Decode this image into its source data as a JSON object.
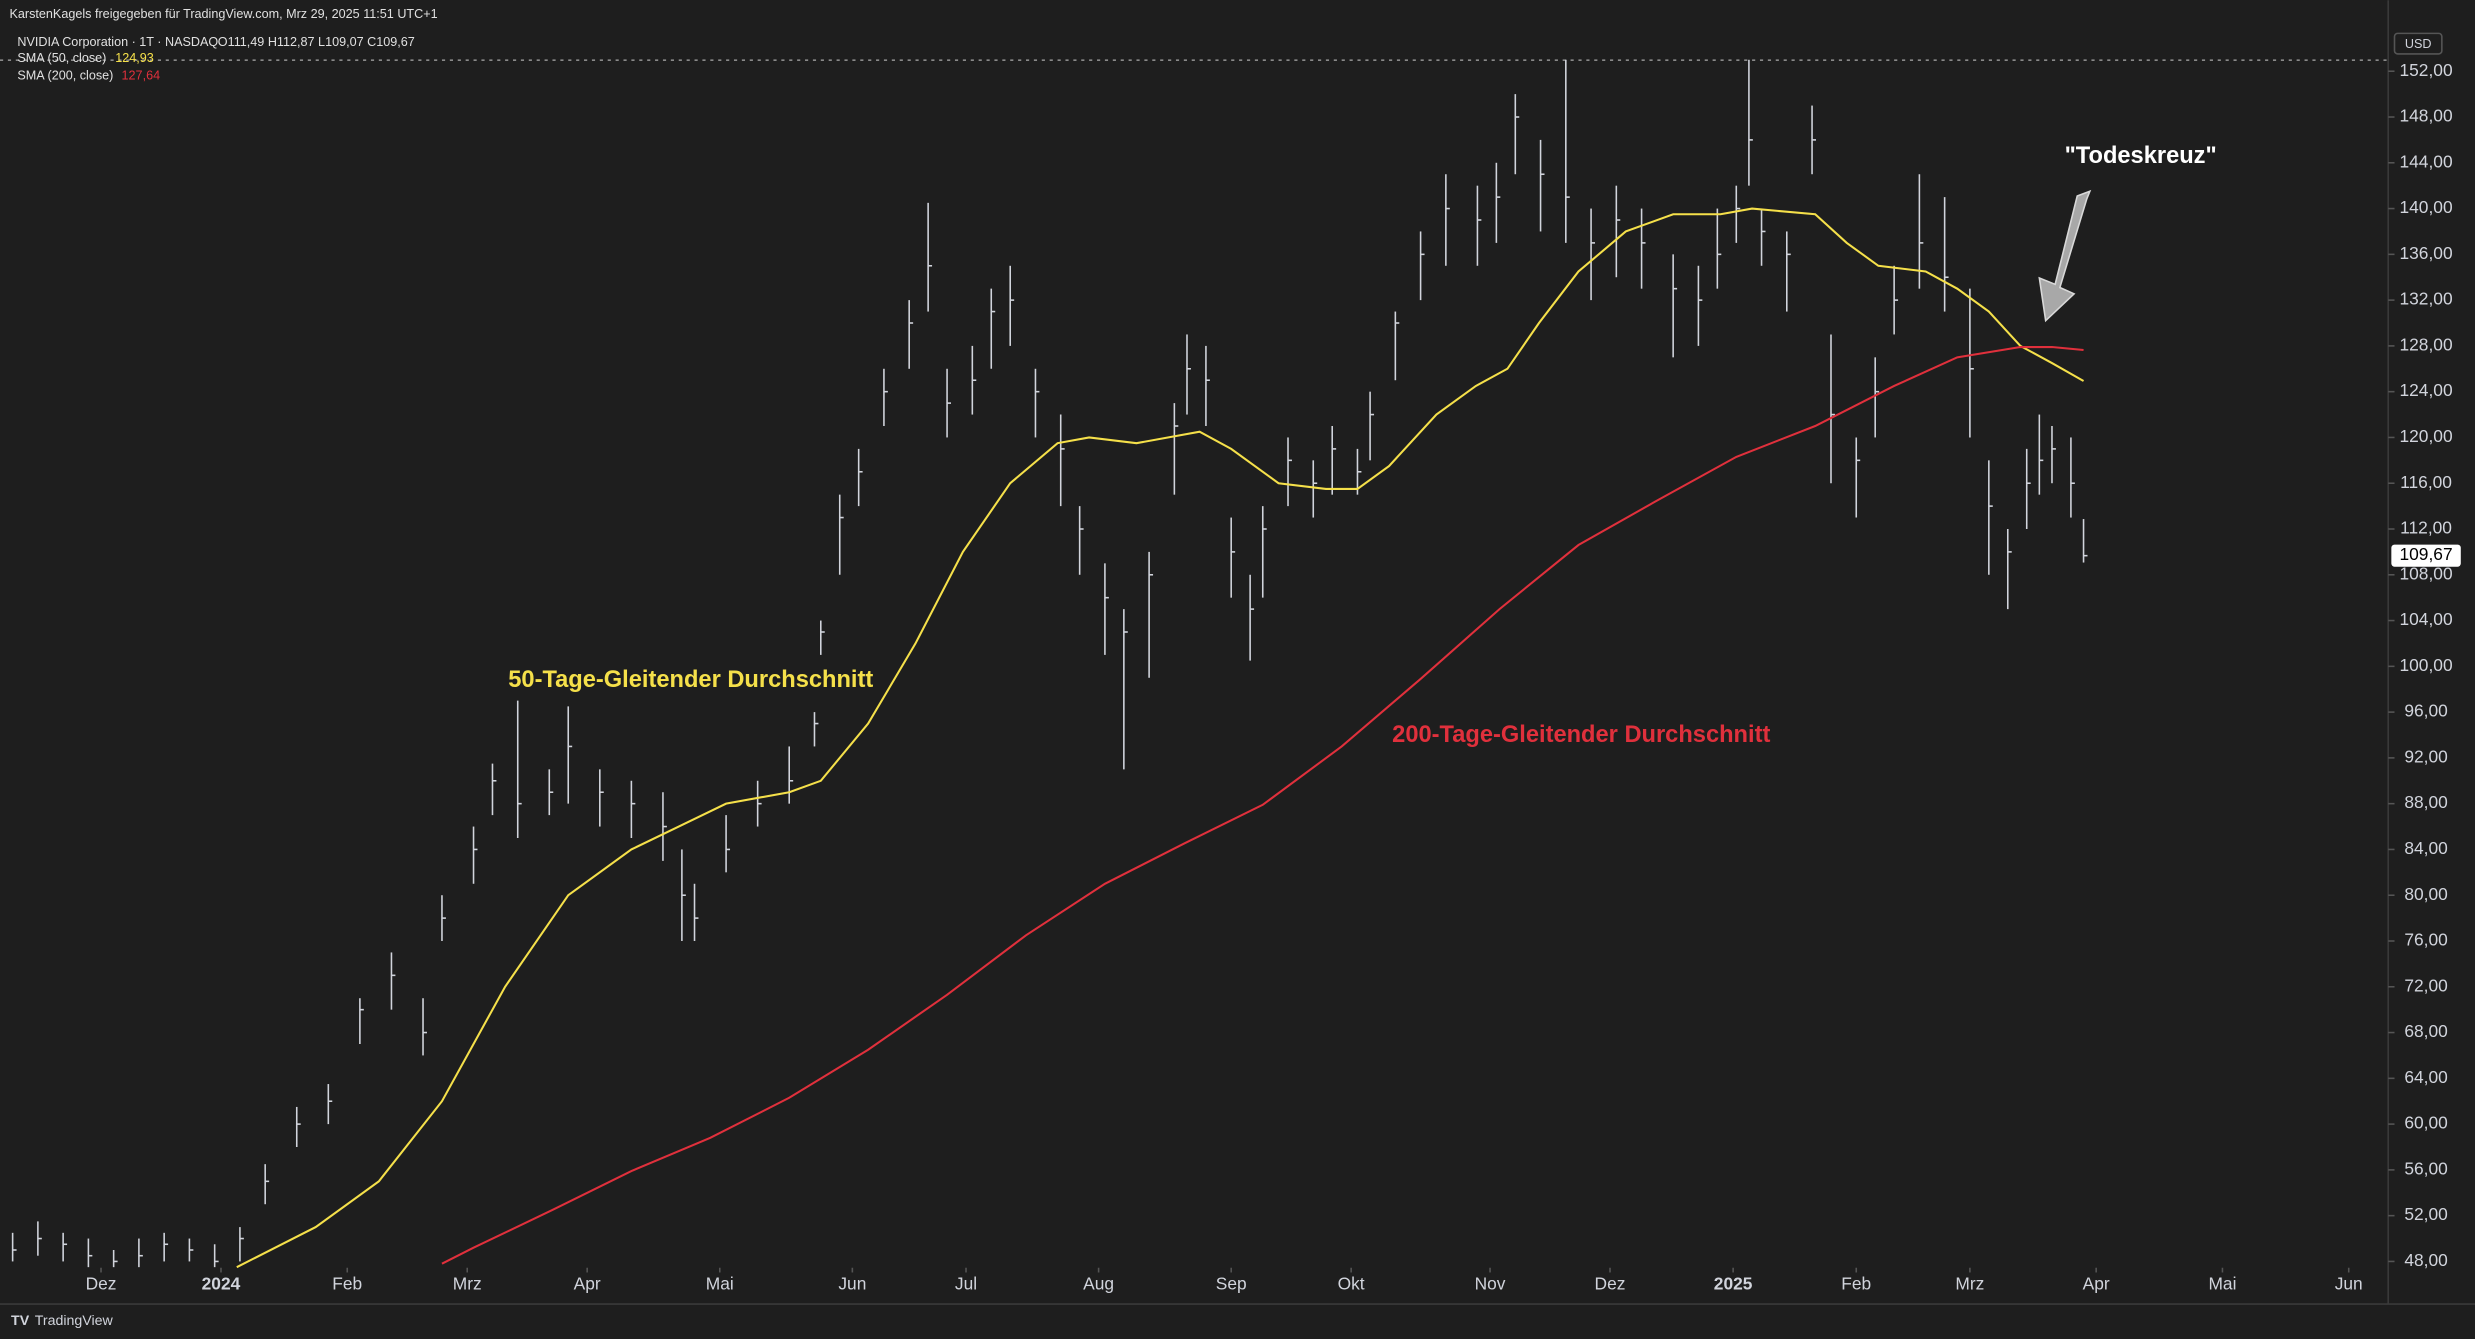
{
  "header": {
    "shared_by": "KarstenKagels freigegeben für TradingView.com, Mrz 29, 2025 11:51 UTC+1",
    "brand": "TradingView"
  },
  "chart_data": {
    "type": "ohlc",
    "title": "NVIDIA Corporation · 1T · NASDAQ",
    "subtitle": "O111,49  H112,87  L109,07  C109,67",
    "currency": "USD",
    "last_label": "109,67",
    "color": "#d1d4dc",
    "x": [
      2,
      6,
      10,
      14,
      18,
      22,
      26,
      30,
      34,
      38,
      42,
      47,
      52,
      57,
      62,
      67,
      70,
      75,
      78,
      82,
      87,
      90,
      95,
      100,
      105,
      108,
      110,
      115,
      120,
      125,
      129,
      130,
      133,
      136,
      140,
      144,
      147,
      150,
      154,
      157,
      160,
      164,
      168,
      171,
      175,
      178,
      182,
      186,
      188,
      191,
      195,
      198,
      200,
      204,
      208,
      211,
      215,
      217,
      221,
      225,
      229,
      234,
      237,
      240,
      244,
      248,
      252,
      256,
      260,
      265,
      269,
      272,
      275,
      277,
      279,
      283,
      287,
      290,
      294,
      297,
      300,
      304,
      308,
      312,
      315,
      318,
      321,
      323,
      325,
      328,
      330
    ],
    "high": [
      50.5,
      51.5,
      50.5,
      50,
      49,
      50,
      50.5,
      50,
      49.5,
      51,
      56.5,
      61.5,
      63.5,
      71,
      75,
      71,
      80,
      86,
      91.5,
      97,
      91,
      96.5,
      91,
      90,
      89,
      84,
      81,
      87,
      90,
      93,
      96,
      104,
      115,
      119,
      126,
      132,
      140.5,
      126,
      128,
      133,
      135,
      126,
      122,
      114,
      109,
      105,
      110,
      123,
      129,
      128,
      113,
      108,
      114,
      120,
      118,
      121,
      119,
      124,
      131,
      138,
      143,
      142,
      144,
      150,
      146,
      153,
      140,
      142,
      140,
      136,
      135,
      140,
      142,
      153,
      140,
      138,
      149,
      129,
      120,
      127,
      135,
      143,
      141,
      133,
      118,
      112,
      119,
      122,
      121,
      120,
      112.87
    ],
    "low": [
      48,
      48.5,
      48,
      47.5,
      47.5,
      47.5,
      48,
      48,
      47.5,
      48,
      53,
      58,
      60,
      67,
      70,
      66,
      76,
      81,
      87,
      85,
      87,
      88,
      86,
      85,
      83,
      76,
      76,
      82,
      86,
      88,
      93,
      101,
      108,
      114,
      121,
      126,
      131,
      120,
      122,
      126,
      128,
      120,
      114,
      108,
      101,
      91,
      99,
      115,
      122,
      121,
      106,
      100.5,
      106,
      114,
      113,
      115,
      115,
      118,
      125,
      132,
      135,
      135,
      137,
      143,
      138,
      137,
      132,
      134,
      133,
      127,
      128,
      133,
      137,
      142,
      135,
      131,
      143,
      116,
      113,
      120,
      129,
      133,
      131,
      120,
      108,
      105,
      112,
      115,
      116,
      113,
      109.07
    ],
    "close": [
      49,
      50,
      49.5,
      48.5,
      48,
      48.5,
      49.5,
      49,
      48,
      50,
      55,
      60,
      62,
      70,
      73,
      68,
      78,
      84,
      90,
      88,
      89,
      93,
      89,
      88,
      86,
      80,
      78,
      84,
      88,
      90,
      95,
      103,
      113,
      117,
      124,
      130,
      135,
      123,
      125,
      131,
      132,
      124,
      119,
      112,
      106,
      103,
      108,
      121,
      126,
      125,
      110,
      105,
      112,
      118,
      116,
      119,
      117,
      122,
      130,
      136,
      140,
      139,
      141,
      148,
      143,
      141,
      137,
      139,
      137,
      133,
      132,
      136,
      140,
      146,
      138,
      136,
      146,
      122,
      118,
      124,
      132,
      137,
      134,
      126,
      114,
      110,
      116,
      118,
      119,
      116,
      109.67
    ],
    "series": [
      {
        "name": "SMA (50, close)",
        "last_label": "124,93",
        "color": "#f5e04a",
        "x": [
          37.5,
          50,
          60,
          70,
          80,
          90,
          100,
          107.5,
          115,
          125,
          130,
          137.5,
          145,
          152.5,
          160,
          167.5,
          172.5,
          180,
          190,
          195,
          202.5,
          210,
          215,
          220,
          227.5,
          233.75,
          238.75,
          243.75,
          250,
          257.5,
          265,
          272.5,
          277.5,
          287.5,
          292.5,
          297.5,
          305,
          310,
          315,
          320,
          325,
          330
        ],
        "values": [
          47.5,
          51,
          55,
          62,
          72,
          80,
          84,
          86,
          88,
          89,
          90,
          95,
          102,
          110,
          116,
          119.5,
          120,
          119.5,
          120.5,
          119,
          116,
          115.5,
          115.5,
          117.5,
          122,
          124.5,
          126,
          130,
          134.5,
          138,
          139.5,
          139.5,
          140,
          139.5,
          137,
          135,
          134.5,
          133,
          131,
          128,
          126.5,
          124.93
        ]
      },
      {
        "name": "SMA (200, close)",
        "last_label": "127,64",
        "color": "#e0303c",
        "x": [
          70,
          75,
          87.5,
          100,
          112.5,
          125,
          137.5,
          150,
          162.5,
          175,
          187.5,
          200,
          212.5,
          225,
          237.5,
          250,
          262.5,
          275,
          287.5,
          300,
          310,
          320,
          325,
          330
        ],
        "values": [
          47.8,
          49.2,
          52.5,
          55.9,
          58.8,
          62.3,
          66.5,
          71.3,
          76.5,
          81,
          84.5,
          87.9,
          93,
          98.9,
          105,
          110.6,
          114.5,
          118.3,
          121,
          124.5,
          127,
          127.9,
          127.9,
          127.64
        ]
      }
    ],
    "annotations": [
      {
        "text": "50-Tage-Gleitender Durchschnitt",
        "color": "#f5e04a"
      },
      {
        "text": "200-Tage-Gleitender Durchschnitt",
        "color": "#e0303c"
      },
      {
        "text": "\"Todeskreuz\"",
        "color": "#ffffff"
      }
    ],
    "xlim": [
      0,
      378.25
    ],
    "xticks": [
      {
        "value": 16,
        "label": "Dez"
      },
      {
        "value": 35,
        "label": "2024"
      },
      {
        "value": 55,
        "label": "Feb"
      },
      {
        "value": 74,
        "label": "Mrz"
      },
      {
        "value": 93,
        "label": "Apr"
      },
      {
        "value": 114,
        "label": "Mai"
      },
      {
        "value": 135,
        "label": "Jun"
      },
      {
        "value": 153,
        "label": "Jul"
      },
      {
        "value": 174,
        "label": "Aug"
      },
      {
        "value": 195,
        "label": "Sep"
      },
      {
        "value": 214,
        "label": "Okt"
      },
      {
        "value": 236,
        "label": "Nov"
      },
      {
        "value": 255,
        "label": "Dez"
      },
      {
        "value": 274.5,
        "label": "2025"
      },
      {
        "value": 294,
        "label": "Feb"
      },
      {
        "value": 312,
        "label": "Mrz"
      },
      {
        "value": 332,
        "label": "Apr"
      },
      {
        "value": 352,
        "label": "Mai"
      },
      {
        "value": 372,
        "label": "Jun"
      }
    ],
    "ylim": [
      47.45,
      153.1
    ],
    "yticks": [
      {
        "value": 48,
        "label": "48,00"
      },
      {
        "value": 52,
        "label": "52,00"
      },
      {
        "value": 56,
        "label": "56,00"
      },
      {
        "value": 60,
        "label": "60,00"
      },
      {
        "value": 64,
        "label": "64,00"
      },
      {
        "value": 68,
        "label": "68,00"
      },
      {
        "value": 72,
        "label": "72,00"
      },
      {
        "value": 76,
        "label": "76,00"
      },
      {
        "value": 80,
        "label": "80,00"
      },
      {
        "value": 84,
        "label": "84,00"
      },
      {
        "value": 88,
        "label": "88,00"
      },
      {
        "value": 92,
        "label": "92,00"
      },
      {
        "value": 96,
        "label": "96,00"
      },
      {
        "value": 100,
        "label": "100,00"
      },
      {
        "value": 104,
        "label": "104,00"
      },
      {
        "value": 108,
        "label": "108,00"
      },
      {
        "value": 112,
        "label": "112,00"
      },
      {
        "value": 116,
        "label": "116,00"
      },
      {
        "value": 120,
        "label": "120,00"
      },
      {
        "value": 124,
        "label": "124,00"
      },
      {
        "value": 128,
        "label": "128,00"
      },
      {
        "value": 132,
        "label": "132,00"
      },
      {
        "value": 136,
        "label": "136,00"
      },
      {
        "value": 140,
        "label": "140,00"
      },
      {
        "value": 144,
        "label": "144,00"
      },
      {
        "value": 148,
        "label": "148,00"
      },
      {
        "value": 152,
        "label": "152,00"
      }
    ],
    "grid": false
  }
}
